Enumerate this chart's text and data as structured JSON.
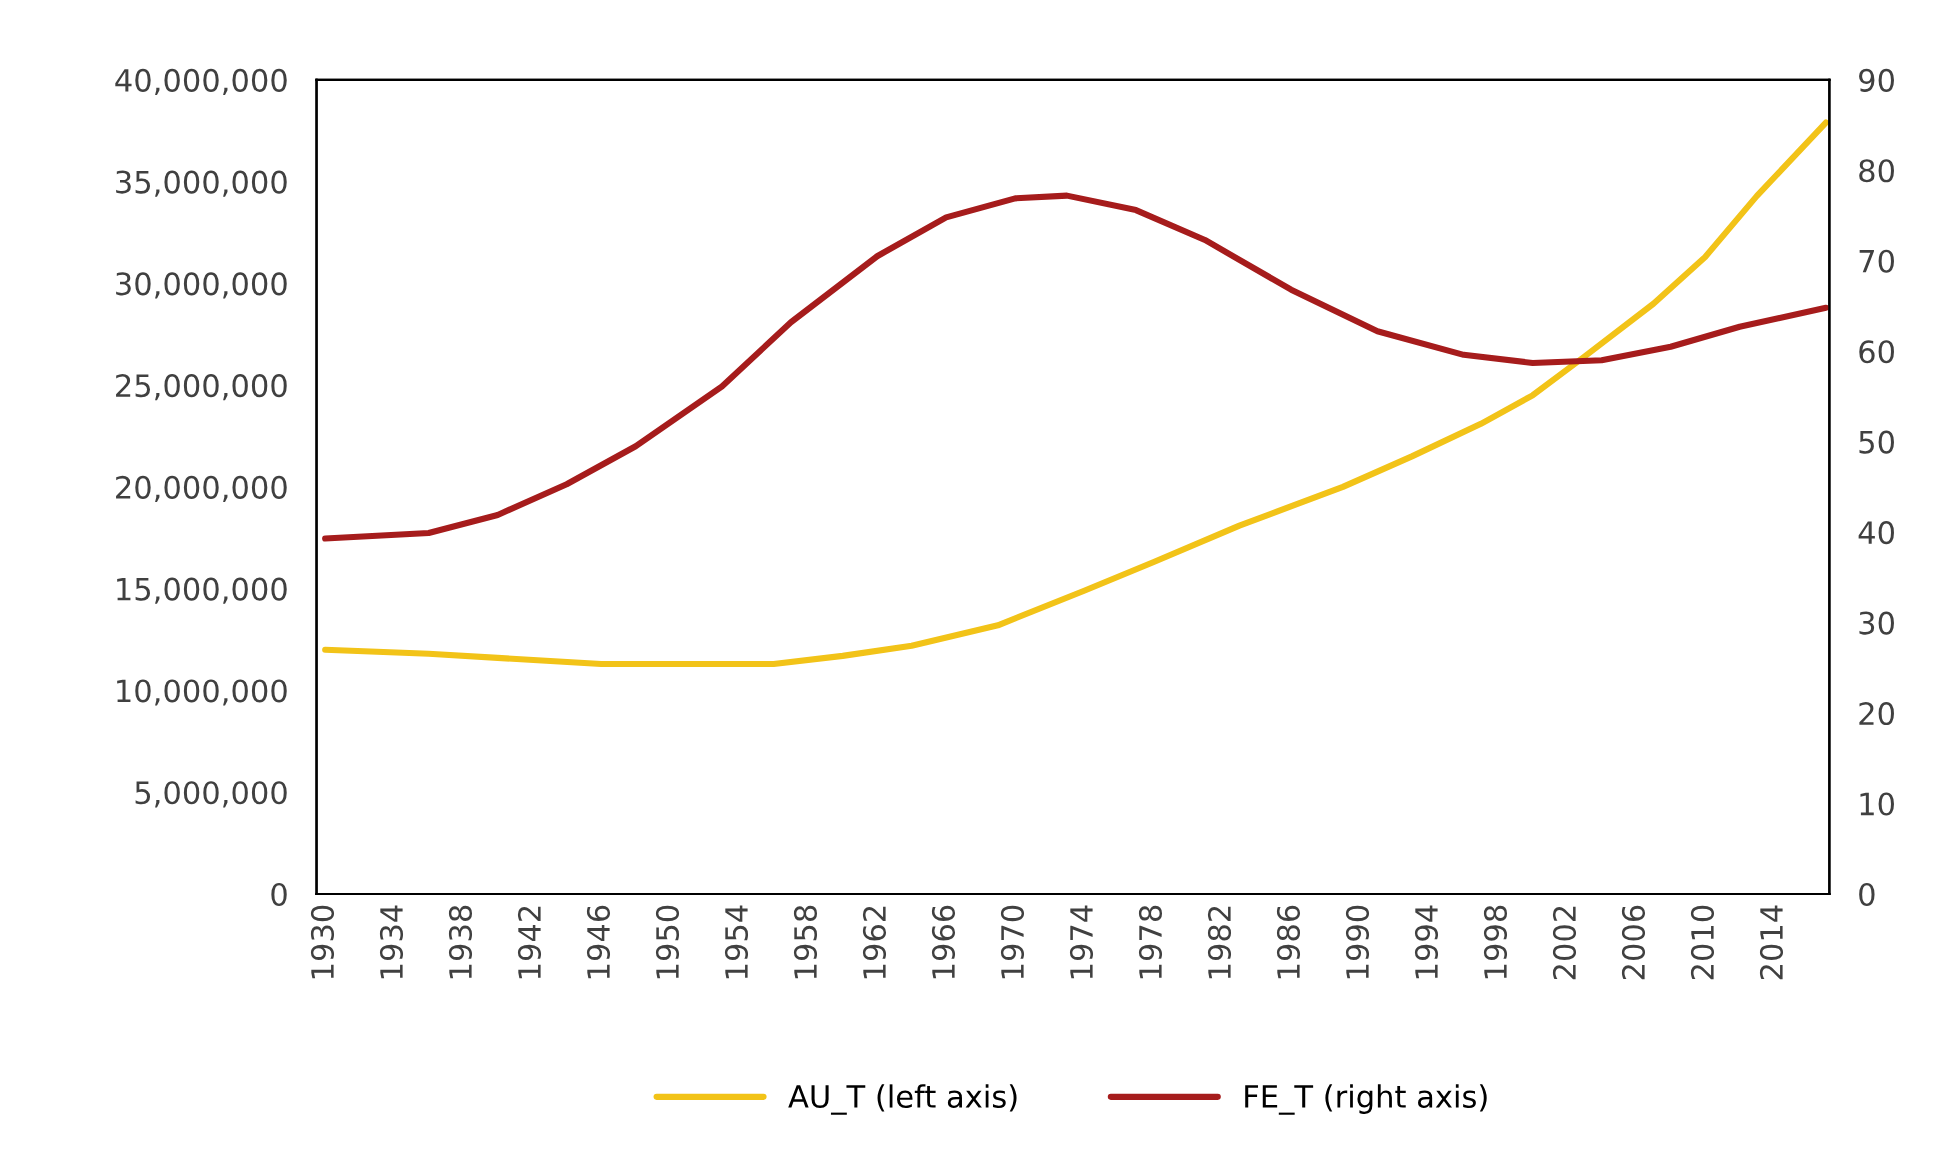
{
  "chart_data": {
    "type": "line",
    "xlim": [
      1929.5,
      2017.2
    ],
    "xticks": [
      1930,
      1934,
      1938,
      1942,
      1946,
      1950,
      1954,
      1958,
      1962,
      1966,
      1970,
      1974,
      1978,
      1982,
      1986,
      1990,
      1994,
      1998,
      2002,
      2006,
      2010,
      2014
    ],
    "ylim": [
      0,
      40000000
    ],
    "yticks": [
      {
        "value": 0,
        "label": "0"
      },
      {
        "value": 5000000,
        "label": "5,000,000"
      },
      {
        "value": 10000000,
        "label": "10,000,000"
      },
      {
        "value": 15000000,
        "label": "15,000,000"
      },
      {
        "value": 20000000,
        "label": "20,000,000"
      },
      {
        "value": 25000000,
        "label": "25,000,000"
      },
      {
        "value": 30000000,
        "label": "30,000,000"
      },
      {
        "value": 35000000,
        "label": "35,000,000"
      },
      {
        "value": 40000000,
        "label": "40,000,000"
      }
    ],
    "y2lim": [
      0,
      90
    ],
    "y2ticks": [
      0,
      10,
      20,
      30,
      40,
      50,
      60,
      70,
      80,
      90
    ],
    "grid": false,
    "legend": "bottom",
    "series": [
      {
        "name": "AU_T (left axis)",
        "color": "#f2c318",
        "axis": "y",
        "x": [
          1930,
          1936,
          1940,
          1946,
          1952,
          1956,
          1960,
          1964,
          1969,
          1974,
          1978,
          1983,
          1989,
          1993,
          1997,
          2000,
          2003,
          2007,
          2010,
          2013,
          2017
        ],
        "values": [
          12000000,
          11800000,
          11600000,
          11300000,
          11300000,
          11300000,
          11700000,
          12200000,
          13200000,
          14900000,
          16300000,
          18100000,
          20000000,
          21500000,
          23100000,
          24500000,
          26400000,
          29000000,
          31300000,
          34300000,
          37900000
        ]
      },
      {
        "name": "FE_T (right axis)",
        "color": "#a61c1c",
        "axis": "y2",
        "x": [
          1930,
          1936,
          1940,
          1944,
          1948,
          1953,
          1957,
          1962,
          1966,
          1970,
          1973,
          1977,
          1981,
          1986,
          1991,
          1996,
          2000,
          2004,
          2008,
          2012,
          2017
        ],
        "values": [
          39.3,
          39.9,
          41.9,
          45.3,
          49.5,
          56.1,
          63.2,
          70.5,
          74.8,
          76.9,
          77.2,
          75.6,
          72.3,
          66.8,
          62.2,
          59.6,
          58.7,
          59.0,
          60.5,
          62.7,
          64.8
        ]
      }
    ]
  }
}
